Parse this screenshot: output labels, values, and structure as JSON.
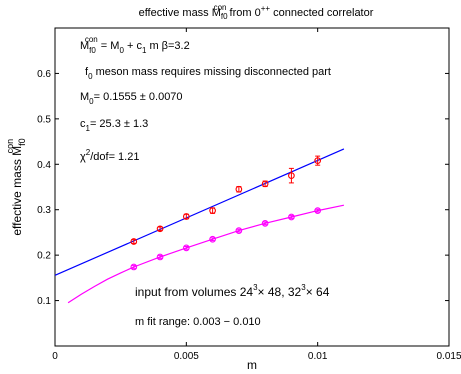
{
  "chart_data": {
    "type": "scatter",
    "title": {
      "pre": "effective mass  M",
      "sub": "f0",
      "sup": "con",
      "post": "  from 0",
      "post_sup": "++",
      "tail": " connected correlator"
    },
    "xlabel": "m",
    "ylabel": {
      "main": "effective mass  M",
      "sub": "f0",
      "sup": "con"
    },
    "xlim": [
      0,
      0.015
    ],
    "ylim": [
      0,
      0.7
    ],
    "xticks": [
      0,
      0.005,
      0.01,
      0.015
    ],
    "xtick_labels": [
      "0",
      "0.005",
      "0.01",
      "0.015"
    ],
    "yticks": [
      0.1,
      0.2,
      0.3,
      0.4,
      0.5,
      0.6
    ],
    "ytick_labels": [
      "0.1",
      "0.2",
      "0.3",
      "0.4",
      "0.5",
      "0.6"
    ],
    "grid": false,
    "series": [
      {
        "color": "#ff0000",
        "marker": "circle",
        "x": [
          0.003,
          0.004,
          0.005,
          0.006,
          0.007,
          0.008,
          0.009,
          0.01
        ],
        "y": [
          0.23,
          0.258,
          0.285,
          0.298,
          0.345,
          0.357,
          0.375,
          0.408
        ],
        "yerr": [
          0.004,
          0.004,
          0.005,
          0.006,
          0.006,
          0.006,
          0.016,
          0.01
        ]
      },
      {
        "color": "#ff00ff",
        "marker": "circle",
        "x": [
          0.003,
          0.004,
          0.005,
          0.006,
          0.007,
          0.008,
          0.009,
          0.01
        ],
        "y": [
          0.174,
          0.196,
          0.216,
          0.235,
          0.254,
          0.27,
          0.284,
          0.298
        ],
        "yerr": [
          0.003,
          0.003,
          0.003,
          0.003,
          0.003,
          0.003,
          0.003,
          0.003
        ]
      }
    ],
    "fit_line": {
      "color": "#0000ff",
      "x": [
        0,
        0.011
      ],
      "y": [
        0.1555,
        0.4338
      ]
    },
    "fit_curve": {
      "color": "#ff00ff",
      "x": [
        0.0005,
        0.001,
        0.0015,
        0.002,
        0.0025,
        0.003,
        0.004,
        0.005,
        0.006,
        0.007,
        0.008,
        0.009,
        0.01,
        0.011
      ],
      "y": [
        0.095,
        0.114,
        0.131,
        0.147,
        0.161,
        0.174,
        0.196,
        0.216,
        0.235,
        0.254,
        0.27,
        0.284,
        0.298,
        0.31
      ]
    },
    "annotations": {
      "formula": {
        "a": "M",
        "a_sub": "f0",
        "a_sup": "con",
        "b": " = M",
        "b_sub": "0",
        "c": " + c",
        "c_sub": "1",
        "d": " m     β=3.2"
      },
      "note": {
        "a": "f",
        "a_sub": "0",
        "b": " meson mass requires missing disconnected part"
      },
      "m0": {
        "a": "M",
        "a_sub": "0",
        "b": "=  0.1555 ± 0.0070"
      },
      "c1": {
        "a": "c",
        "a_sub": "1",
        "b": "=  25.3 ± 1.3"
      },
      "chi": {
        "a": "χ",
        "a_sup": "2",
        "b": "/dof= 1.21"
      },
      "volumes": {
        "a": "input from volumes  24",
        "a_sup": "3",
        "b": "× 48, 32",
        "b_sup": "3",
        "c": "× 64"
      },
      "range": "m fit range:  0.003 − 0.010"
    }
  }
}
